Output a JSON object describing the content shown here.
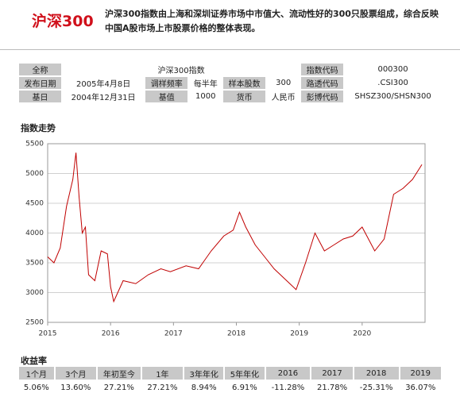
{
  "header": {
    "title": "沪深300",
    "description": "沪深300指数由上海和深圳证券市场中市值大、流动性好的300只股票组成，综合反映中国A股市场上市股票价格的整体表现。"
  },
  "info": {
    "rows": [
      [
        "全称",
        "沪深300指数",
        "指数代码",
        "000300"
      ],
      [
        "发布日期",
        "2005年4月8日",
        "调样频率",
        "每半年",
        "样本股数",
        "300",
        "路透代码",
        ".CSI300"
      ],
      [
        "基日",
        "2004年12月31日",
        "基值",
        "1000",
        "货币",
        "人民币",
        "彭博代码",
        "SHSZ300/SHSN300"
      ]
    ]
  },
  "chart_data": {
    "type": "line",
    "title": "指数走势",
    "color": "#c00000",
    "x": [
      2015.0,
      2015.1,
      2015.2,
      2015.3,
      2015.4,
      2015.45,
      2015.5,
      2015.55,
      2015.6,
      2015.65,
      2015.75,
      2015.85,
      2015.95,
      2016.0,
      2016.05,
      2016.2,
      2016.4,
      2016.6,
      2016.8,
      2016.95,
      2017.2,
      2017.4,
      2017.6,
      2017.8,
      2017.95,
      2018.05,
      2018.15,
      2018.3,
      2018.45,
      2018.6,
      2018.8,
      2018.95,
      2019.1,
      2019.25,
      2019.4,
      2019.55,
      2019.7,
      2019.85,
      2020.0,
      2020.2,
      2020.35,
      2020.5,
      2020.65,
      2020.8,
      2020.95
    ],
    "values": [
      3600,
      3500,
      3750,
      4450,
      4900,
      5350,
      4600,
      4000,
      4100,
      3300,
      3200,
      3700,
      3650,
      3100,
      2850,
      3200,
      3150,
      3300,
      3400,
      3350,
      3450,
      3400,
      3700,
      3950,
      4050,
      4350,
      4100,
      3800,
      3600,
      3400,
      3200,
      3050,
      3500,
      4000,
      3700,
      3800,
      3900,
      3950,
      4100,
      3700,
      3900,
      4650,
      4750,
      4900,
      5150
    ],
    "xlim": [
      2015,
      2021
    ],
    "xticks": [
      2015,
      2016,
      2017,
      2018,
      2019,
      2020
    ],
    "ylim": [
      2500,
      5500
    ],
    "yticks": [
      2500,
      3000,
      3500,
      4000,
      4500,
      5000,
      5500
    ],
    "grid": true
  },
  "returns": {
    "title": "收益率",
    "headers": [
      "1个月",
      "3个月",
      "年初至今",
      "1年",
      "3年年化",
      "5年年化",
      "2016",
      "2017",
      "2018",
      "2019"
    ],
    "values": [
      "5.06%",
      "13.60%",
      "27.21%",
      "27.21%",
      "8.94%",
      "6.91%",
      "-11.28%",
      "21.78%",
      "-25.31%",
      "36.07%"
    ]
  }
}
